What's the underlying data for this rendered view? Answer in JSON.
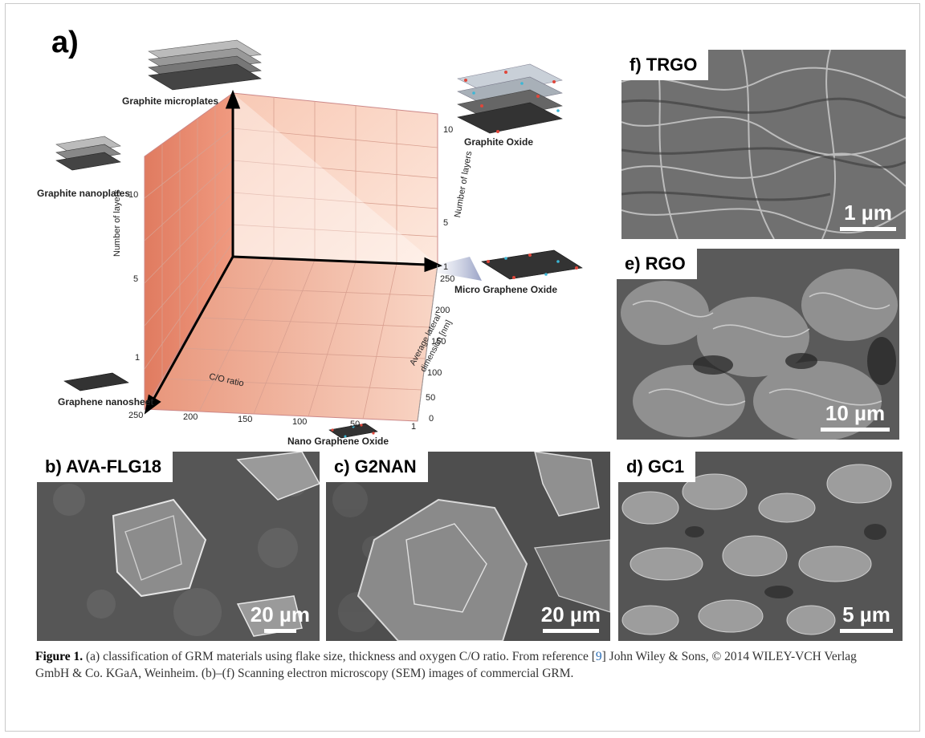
{
  "panel_a": {
    "label": "a)",
    "materials": {
      "graphite_microplates": "Graphite microplates",
      "graphite_nanoplates": "Graphite nanoplates",
      "graphene_nanosheet": "Graphene nanosheet",
      "graphite_oxide": "Graphite Oxide",
      "micro_graphene_oxide": "Micro Graphene Oxide",
      "nano_graphene_oxide": "Nano Graphene Oxide"
    },
    "axes": {
      "layers_left": "Number of layers",
      "layers_right": "Number of layers",
      "co_ratio": "C/O ratio",
      "lateral_1": "Average lateral",
      "lateral_2": "dimension [nm]"
    },
    "ticks": {
      "layers_left": [
        "10",
        "5",
        "1"
      ],
      "layers_right": [
        "10",
        "5",
        "1"
      ],
      "co": [
        "250",
        "200",
        "150",
        "100",
        "50",
        "1"
      ],
      "lateral": [
        "250",
        "200",
        "150",
        "100",
        "50",
        "0"
      ]
    }
  },
  "panels": {
    "f": {
      "label": "f) TRGO",
      "scale": "1 µm"
    },
    "e": {
      "label": "e) RGO",
      "scale": "10 µm"
    },
    "b": {
      "label": "b) AVA-FLG18",
      "scale": "20 µm"
    },
    "c": {
      "label": "c) G2NAN",
      "scale": "20 µm"
    },
    "d": {
      "label": "d) GC1",
      "scale": "5 µm"
    }
  },
  "caption": {
    "fig": "Figure 1.",
    "text1": " (a) classification of GRM materials using flake size, thickness and oxygen C/O ratio. From reference [",
    "ref": "9",
    "text2": "] John Wiley & Sons, © 2014 WILEY-VCH Verlag GmbH & Co. KGaA, Weinheim. (b)–(f) Scanning electron microscopy (SEM) images of commercial GRM."
  }
}
